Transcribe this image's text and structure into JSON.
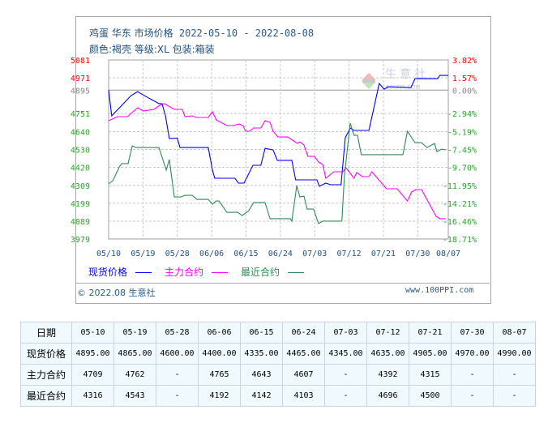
{
  "header": {
    "line1_cn": "鸡蛋 华东 市场价格",
    "line1_range": "2022-05-10 - 2022-08-08",
    "line2": "颜色:褐壳 等级:XL 包装:箱装"
  },
  "watermark": {
    "name": "生意社",
    "url": "100PPI.COM"
  },
  "footer": {
    "copyright": "© 2022.08 生意社",
    "site": "www.100PPI.com"
  },
  "colors": {
    "spot": "#0000ff",
    "main": "#ff00ff",
    "near": "#2e8b57",
    "up": "#ff0000",
    "down": "#22aa22",
    "base": "#888888"
  },
  "chart_data": {
    "type": "line",
    "title": "鸡蛋 华东 市场价格 2022-05-10 - 2022-08-08",
    "x_unit": "days since 05/10",
    "xlim": [
      0,
      89
    ],
    "ylim": [
      3979,
      5081
    ],
    "base_value": 4895,
    "x_ticks": [
      {
        "day": 0,
        "label": "05/10"
      },
      {
        "day": 9,
        "label": "05/19"
      },
      {
        "day": 18,
        "label": "05/28"
      },
      {
        "day": 27,
        "label": "06/06"
      },
      {
        "day": 36,
        "label": "06/15"
      },
      {
        "day": 45,
        "label": "06/24"
      },
      {
        "day": 54,
        "label": "07/03"
      },
      {
        "day": 63,
        "label": "07/12"
      },
      {
        "day": 72,
        "label": "07/21"
      },
      {
        "day": 81,
        "label": "07/30"
      },
      {
        "day": 89,
        "label": "08/07"
      }
    ],
    "y_ticks_left": [
      "5081",
      "4971",
      "4895",
      "4751",
      "4640",
      "4530",
      "4420",
      "4309",
      "4199",
      "4089",
      "3979"
    ],
    "y_tick_values": [
      5081,
      4971,
      4895,
      4751,
      4640,
      4530,
      4420,
      4309,
      4199,
      4089,
      3979
    ],
    "y_ticks_right": [
      "3.82%",
      "1.57%",
      "0.00%",
      "-2.94%",
      "-5.19%",
      "-7.45%",
      "-9.70%",
      "-11.95%",
      "-14.21%",
      "-16.46%",
      "-18.71%"
    ],
    "legend_position": "bottom",
    "series": [
      {
        "name": "现货价格",
        "key": "spot",
        "points": [
          [
            0,
            4896
          ],
          [
            0.8,
            4737
          ],
          [
            5.9,
            4862
          ],
          [
            7.6,
            4886
          ],
          [
            9.1,
            4865
          ],
          [
            13.2,
            4812
          ],
          [
            14,
            4812
          ],
          [
            14.9,
            4737
          ],
          [
            15.9,
            4597
          ],
          [
            18,
            4600
          ],
          [
            18.7,
            4542
          ],
          [
            26.1,
            4542
          ],
          [
            27.2,
            4403
          ],
          [
            27.8,
            4353
          ],
          [
            33.1,
            4353
          ],
          [
            34,
            4323
          ],
          [
            35.5,
            4323
          ],
          [
            37.8,
            4433
          ],
          [
            39.9,
            4433
          ],
          [
            41,
            4537
          ],
          [
            43.1,
            4527
          ],
          [
            44.2,
            4463
          ],
          [
            48,
            4463
          ],
          [
            49,
            4343
          ],
          [
            54.6,
            4343
          ],
          [
            55.2,
            4303
          ],
          [
            56.9,
            4323
          ],
          [
            58.2,
            4313
          ],
          [
            60.9,
            4313
          ],
          [
            62,
            4602
          ],
          [
            63.3,
            4662
          ],
          [
            64.3,
            4647
          ],
          [
            68.2,
            4647
          ],
          [
            70.9,
            4936
          ],
          [
            72.2,
            4901
          ],
          [
            73.2,
            4916
          ],
          [
            79.2,
            4911
          ],
          [
            80.3,
            4966
          ],
          [
            86.2,
            4966
          ],
          [
            86.8,
            4986
          ],
          [
            89,
            4986
          ]
        ]
      },
      {
        "name": "主力合约",
        "key": "main",
        "points": [
          [
            0,
            4707
          ],
          [
            2.3,
            4732
          ],
          [
            4.9,
            4732
          ],
          [
            7.6,
            4787
          ],
          [
            9.1,
            4767
          ],
          [
            11.9,
            4777
          ],
          [
            13.4,
            4802
          ],
          [
            14.6,
            4812
          ],
          [
            17.2,
            4777
          ],
          [
            19.3,
            4777
          ],
          [
            20,
            4732
          ],
          [
            21.9,
            4737
          ],
          [
            23.1,
            4727
          ],
          [
            26.1,
            4727
          ],
          [
            27.2,
            4762
          ],
          [
            28.2,
            4712
          ],
          [
            31,
            4677
          ],
          [
            32.7,
            4677
          ],
          [
            34.2,
            4687
          ],
          [
            35.2,
            4677
          ],
          [
            35.9,
            4642
          ],
          [
            36.9,
            4642
          ],
          [
            38,
            4662
          ],
          [
            39.9,
            4662
          ],
          [
            41,
            4707
          ],
          [
            42.3,
            4697
          ],
          [
            43.1,
            4642
          ],
          [
            44.4,
            4607
          ],
          [
            46.9,
            4607
          ],
          [
            49.5,
            4567
          ],
          [
            50.1,
            4577
          ],
          [
            51.2,
            4557
          ],
          [
            52.2,
            4488
          ],
          [
            53.9,
            4488
          ],
          [
            55,
            4453
          ],
          [
            56.1,
            4438
          ],
          [
            56.9,
            4353
          ],
          [
            59,
            4393
          ],
          [
            61.4,
            4393
          ],
          [
            62.2,
            4418
          ],
          [
            64.3,
            4353
          ],
          [
            65,
            4388
          ],
          [
            66.5,
            4363
          ],
          [
            68.2,
            4363
          ],
          [
            69,
            4393
          ],
          [
            72.8,
            4288
          ],
          [
            75.6,
            4288
          ],
          [
            78.3,
            4213
          ],
          [
            79.4,
            4268
          ],
          [
            80.5,
            4283
          ],
          [
            82,
            4283
          ],
          [
            85.8,
            4119
          ],
          [
            86.8,
            4104
          ],
          [
            88.3,
            4104
          ]
        ]
      },
      {
        "name": "最近合约",
        "key": "near",
        "points": [
          [
            0,
            4318
          ],
          [
            1.1,
            4338
          ],
          [
            2.8,
            4423
          ],
          [
            3.4,
            4443
          ],
          [
            5.1,
            4443
          ],
          [
            6.2,
            4552
          ],
          [
            7.2,
            4542
          ],
          [
            13.2,
            4542
          ],
          [
            15.1,
            4403
          ],
          [
            15.9,
            4468
          ],
          [
            17.2,
            4238
          ],
          [
            18.9,
            4238
          ],
          [
            20,
            4248
          ],
          [
            21.9,
            4248
          ],
          [
            23.1,
            4223
          ],
          [
            26.1,
            4223
          ],
          [
            27.2,
            4193
          ],
          [
            28.2,
            4213
          ],
          [
            28.9,
            4213
          ],
          [
            31,
            4143
          ],
          [
            33.8,
            4143
          ],
          [
            35,
            4123
          ],
          [
            36.7,
            4153
          ],
          [
            38,
            4203
          ],
          [
            41,
            4203
          ],
          [
            42.3,
            4104
          ],
          [
            47.6,
            4104
          ],
          [
            48,
            4089
          ],
          [
            49.3,
            4308
          ],
          [
            50.1,
            4238
          ],
          [
            51.2,
            4243
          ],
          [
            52,
            4163
          ],
          [
            53.7,
            4163
          ],
          [
            55,
            4074
          ],
          [
            56.1,
            4089
          ],
          [
            61.1,
            4089
          ],
          [
            61.8,
            4368
          ],
          [
            63.3,
            4692
          ],
          [
            64.3,
            4617
          ],
          [
            65.2,
            4617
          ],
          [
            66.2,
            4498
          ],
          [
            77.1,
            4498
          ],
          [
            78.3,
            4642
          ],
          [
            80.3,
            4572
          ],
          [
            82,
            4572
          ],
          [
            83.4,
            4542
          ],
          [
            85.4,
            4567
          ],
          [
            86,
            4517
          ],
          [
            87.3,
            4532
          ],
          [
            88.3,
            4527
          ]
        ]
      }
    ]
  },
  "table": {
    "headers": [
      "日期",
      "05-10",
      "05-19",
      "05-28",
      "06-06",
      "06-15",
      "06-24",
      "07-03",
      "07-12",
      "07-21",
      "07-30",
      "08-07"
    ],
    "rows": [
      [
        "现货价格",
        "4895.00",
        "4865.00",
        "4600.00",
        "4400.00",
        "4335.00",
        "4465.00",
        "4345.00",
        "4635.00",
        "4905.00",
        "4970.00",
        "4990.00"
      ],
      [
        "主力合约",
        "4709",
        "4762",
        "-",
        "4765",
        "4643",
        "4607",
        "-",
        "4392",
        "4315",
        "-",
        "-"
      ],
      [
        "最近合约",
        "4316",
        "4543",
        "-",
        "4192",
        "4142",
        "4103",
        "-",
        "4696",
        "4500",
        "-",
        "-"
      ]
    ]
  }
}
